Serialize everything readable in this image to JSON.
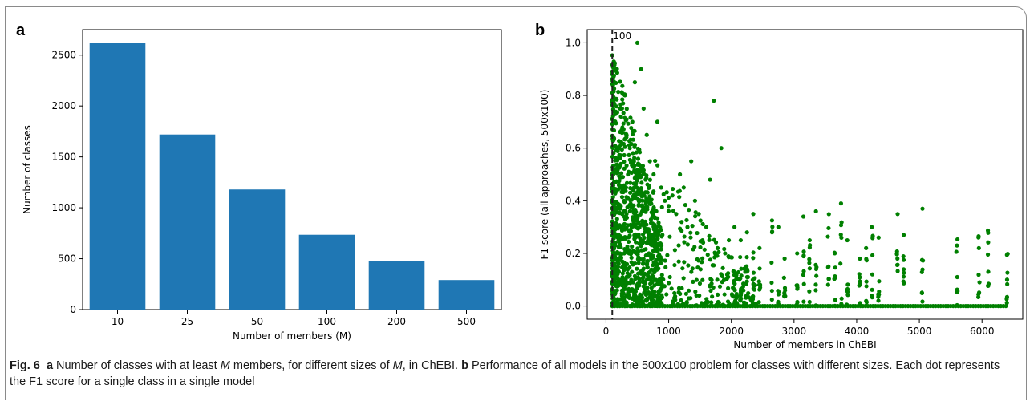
{
  "panel_a_letter": "a",
  "panel_b_letter": "b",
  "caption": {
    "fig_label": "Fig. 6",
    "a_tag": "a",
    "a_text_1": " Number of classes with at least ",
    "a_M1": "M",
    "a_text_2": " members, for different sizes of ",
    "a_M2": "M",
    "a_text_3": ", in ChEBI. ",
    "b_tag": "b",
    "b_text": " Performance of all models in the 500x100 problem for classes with different sizes. Each dot represents the F1 score for a single class in a single model"
  },
  "chart_data": [
    {
      "type": "bar",
      "panel": "a",
      "categories": [
        "10",
        "25",
        "50",
        "100",
        "200",
        "500"
      ],
      "values": [
        2620,
        1720,
        1180,
        735,
        480,
        290
      ],
      "xlabel": "Number of members (M)",
      "ylabel": "Number of classes",
      "ylim": [
        0,
        2750
      ],
      "yticks": [
        0,
        500,
        1000,
        1500,
        2000,
        2500
      ],
      "color": "#1f77b4"
    },
    {
      "type": "scatter",
      "panel": "b",
      "xlabel": "Number of members in ChEBI",
      "ylabel": "F1 score (all approaches, 500x100)",
      "xlim": [
        -300,
        6650
      ],
      "ylim": [
        -0.05,
        1.05
      ],
      "xticks": [
        0,
        1000,
        2000,
        3000,
        4000,
        5000,
        6000
      ],
      "yticks": [
        0.0,
        0.2,
        0.4,
        0.6,
        0.8,
        1.0
      ],
      "color": "#008000",
      "vline": {
        "x": 100,
        "label": "100",
        "style": "dashed",
        "color": "#222222"
      },
      "point_groups": [
        {
          "x": [
            100,
            120,
            140,
            160,
            180,
            200,
            230,
            260,
            290,
            320,
            350,
            380,
            420,
            460,
            500
          ],
          "y": [
            0.0,
            0.05,
            0.1,
            0.15,
            0.2,
            0.25,
            0.3,
            0.35,
            0.4,
            0.45,
            0.5,
            0.6,
            0.7,
            0.85,
            1.0
          ]
        },
        {
          "x": [
            560,
            600,
            650,
            700,
            760,
            820,
            880,
            940,
            1000,
            1060,
            1120,
            1180,
            1240,
            1300,
            1360,
            1420,
            1480,
            1540,
            1600,
            1660,
            1720,
            1780,
            1840,
            1900,
            1960
          ],
          "y": [
            0.9,
            0.75,
            0.65,
            0.55,
            0.5,
            0.7,
            0.45,
            0.4,
            0.38,
            0.42,
            0.35,
            0.5,
            0.45,
            0.3,
            0.55,
            0.4,
            0.35,
            0.25,
            0.3,
            0.48,
            0.78,
            0.22,
            0.6,
            0.2,
            0.25
          ]
        },
        {
          "x": [
            2050,
            2150,
            2250,
            2350,
            2450,
            2650,
            2750,
            2850,
            3050,
            3150,
            3250,
            3350,
            3550,
            3650,
            3750,
            3850,
            4050,
            4150,
            4250,
            4350,
            4650,
            4750,
            5050,
            5600,
            5950,
            6100,
            6400
          ],
          "y": [
            0.3,
            0.25,
            0.28,
            0.35,
            0.22,
            0.28,
            0.3,
            0.18,
            0.2,
            0.34,
            0.25,
            0.36,
            0.15,
            0.2,
            0.39,
            0.25,
            0.18,
            0.22,
            0.12,
            0.26,
            0.18,
            0.27,
            0.37,
            0.23,
            0.22,
            0.13,
            0.1
          ]
        }
      ]
    }
  ]
}
